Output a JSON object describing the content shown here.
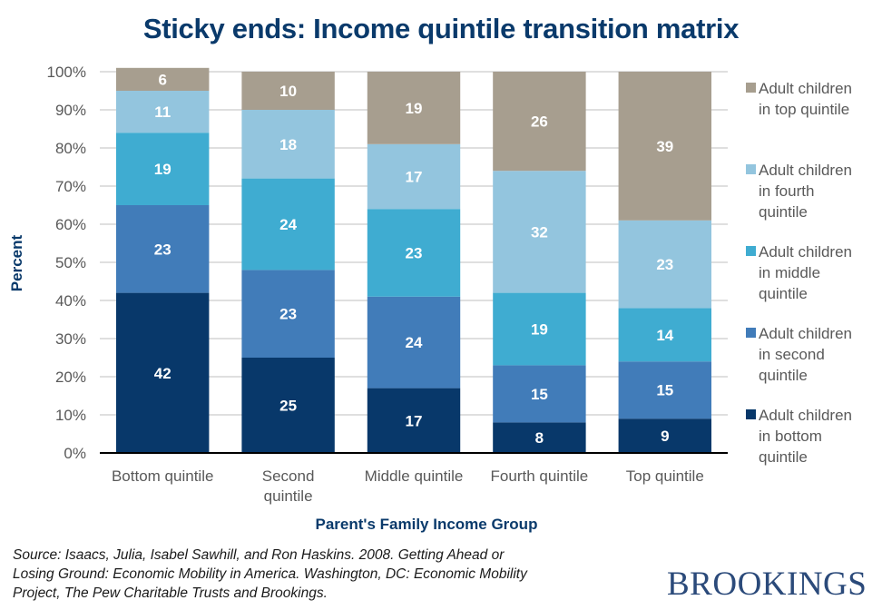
{
  "chart_data": {
    "type": "bar",
    "stacked": true,
    "title": "Sticky ends: Income quintile transition matrix",
    "xlabel": "Parent's Family Income Group",
    "ylabel": "Percent",
    "ylim": [
      0,
      100
    ],
    "yticks": [
      "0%",
      "10%",
      "20%",
      "30%",
      "40%",
      "50%",
      "60%",
      "70%",
      "80%",
      "90%",
      "100%"
    ],
    "ytick_values": [
      0,
      10,
      20,
      30,
      40,
      50,
      60,
      70,
      80,
      90,
      100
    ],
    "grid": true,
    "legend_position": "right",
    "categories": [
      [
        "Bottom quintile"
      ],
      [
        "Second",
        "quintile"
      ],
      [
        "Middle quintile"
      ],
      [
        "Fourth quintile"
      ],
      [
        "Top quintile"
      ]
    ],
    "series": [
      {
        "name": "Adult children in bottom quintile",
        "legend_lines": [
          "Adult children",
          "in bottom",
          "quintile"
        ],
        "color": "#08386a",
        "values": [
          42,
          25,
          17,
          8,
          9
        ]
      },
      {
        "name": "Adult children in second quintile",
        "legend_lines": [
          "Adult children",
          "in second",
          "quintile"
        ],
        "color": "#417cb9",
        "values": [
          23,
          23,
          24,
          15,
          15
        ]
      },
      {
        "name": "Adult children in middle quintile",
        "legend_lines": [
          "Adult children",
          "in middle",
          "quintile"
        ],
        "color": "#3facd1",
        "values": [
          19,
          24,
          23,
          19,
          14
        ]
      },
      {
        "name": "Adult children in fourth quintile",
        "legend_lines": [
          "Adult children",
          "in fourth",
          "quintile"
        ],
        "color": "#93c5de",
        "values": [
          11,
          18,
          17,
          32,
          23
        ]
      },
      {
        "name": "Adult children in top quintile",
        "legend_lines": [
          "Adult children",
          "in top quintile"
        ],
        "color": "#a79e8f",
        "values": [
          6,
          10,
          19,
          26,
          39
        ]
      }
    ]
  },
  "source_lines": [
    "Source: Isaacs, Julia, Isabel Sawhill, and Ron Haskins. 2008. Getting Ahead or",
    "Losing Ground: Economic Mobility in America. Washington, DC: Economic Mobility",
    "Project, The Pew Charitable Trusts and Brookings."
  ],
  "logo_text": "BROOKINGS"
}
